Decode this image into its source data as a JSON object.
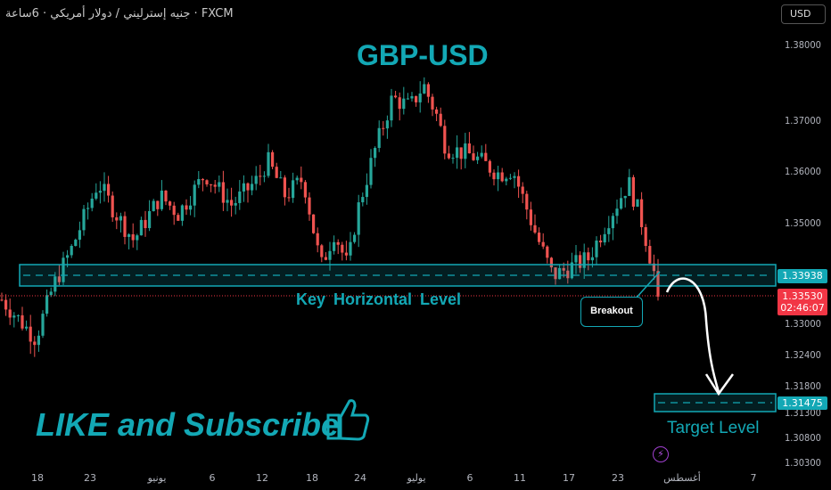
{
  "header": {
    "symbol_line": "جنيه إسترليني / دولار أمريكي · 6ساعة · FXCM",
    "currency": "USD"
  },
  "annotations": {
    "title": "GBP-USD",
    "key_level": "Key  Horizontal Level",
    "breakout": "Breakout",
    "target": "Target Level",
    "cta": "LIKE and Subscribe"
  },
  "price_axis": {
    "ticks": [
      "1.38000",
      "1.37000",
      "1.36000",
      "1.35000",
      "1.33000",
      "1.32400",
      "1.31800",
      "1.31300",
      "1.30800",
      "1.30300"
    ],
    "key_level_label": "1.33938",
    "last_price": "1.33530",
    "countdown": "02:46:07",
    "target_label": "1.31475"
  },
  "date_axis": {
    "ticks": [
      "18",
      "23",
      "يونيو",
      "6",
      "12",
      "18",
      "24",
      "يوليو",
      "6",
      "11",
      "17",
      "23",
      "أغسطس",
      "7"
    ]
  },
  "colors": {
    "accent": "#13a8b5",
    "up": "#26a69a",
    "down": "#ef5350",
    "last_price": "#f23645"
  },
  "chart_data": {
    "type": "candlestick",
    "price_path": [
      1.3341,
      1.327,
      1.3376,
      1.3447,
      1.358,
      1.3518,
      1.3465,
      1.3553,
      1.3518,
      1.3597,
      1.3535,
      1.3588,
      1.3624,
      1.3553,
      1.3588,
      1.3412,
      1.3482,
      1.3412,
      1.3518,
      1.3642,
      1.3748,
      1.373,
      1.3774,
      1.3712,
      1.365,
      1.3633,
      1.3597,
      1.3606,
      1.3482,
      1.3394,
      1.3412,
      1.3429,
      1.35,
      1.358,
      1.35,
      1.3353
    ],
    "key_level": 1.33938,
    "target_level": 1.31475,
    "last": 1.3353
  }
}
